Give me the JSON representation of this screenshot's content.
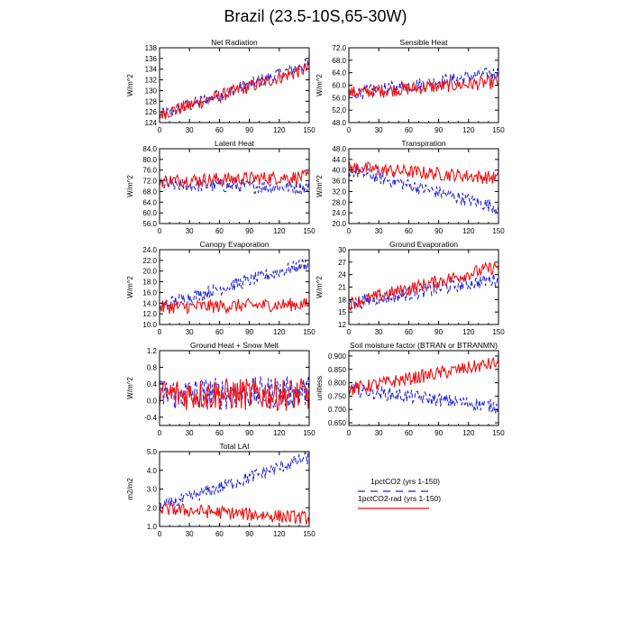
{
  "figure": {
    "title": "Brazil (23.5-10S,65-30W)",
    "colors": {
      "series1": "#2222dd",
      "series2": "#ee1111",
      "axis": "#000000"
    }
  },
  "legend": {
    "entries": [
      {
        "label": "1pctCO2 (yrs 1-150)",
        "color": "#2222dd",
        "style": "dashed"
      },
      {
        "label": "1pctCO2-rad (yrs 1-150)",
        "color": "#ee1111",
        "style": "solid"
      }
    ]
  },
  "chart_data": [
    {
      "type": "line",
      "title": "Net Radiation",
      "ylabel": "W/m^2",
      "xlim": [
        0,
        150
      ],
      "ylim": [
        124,
        138
      ],
      "xticks": [
        0,
        30,
        60,
        90,
        120,
        150
      ],
      "yticks": [
        124,
        126,
        128,
        130,
        132,
        134,
        136,
        138
      ],
      "ytick_labels": [
        "124",
        "126",
        "128",
        "130",
        "132",
        "134",
        "136",
        "138"
      ],
      "series": [
        {
          "values_start": 125.3,
          "values_end": 135.0
        },
        {
          "values_start": 125.5,
          "values_end": 134.2
        }
      ]
    },
    {
      "type": "line",
      "title": "Sensible Heat",
      "ylabel": "W/m^2",
      "xlim": [
        0,
        150
      ],
      "ylim": [
        48,
        72
      ],
      "xticks": [
        0,
        30,
        60,
        90,
        120,
        150
      ],
      "yticks": [
        48,
        52,
        56,
        60,
        64,
        68,
        72
      ],
      "ytick_labels": [
        "48.0",
        "52.0",
        "56.0",
        "60.0",
        "64.0",
        "68.0",
        "72.0"
      ],
      "series": [
        {
          "values_start": 57.0,
          "values_end": 64.0
        },
        {
          "values_start": 57.5,
          "values_end": 61.0
        }
      ]
    },
    {
      "type": "line",
      "title": "Latent Heat",
      "ylabel": "W/m^2",
      "xlim": [
        0,
        150
      ],
      "ylim": [
        56,
        84
      ],
      "xticks": [
        0,
        30,
        60,
        90,
        120,
        150
      ],
      "yticks": [
        56,
        60,
        64,
        68,
        72,
        76,
        80,
        84
      ],
      "ytick_labels": [
        "56.0",
        "60.0",
        "64.0",
        "68.0",
        "72.0",
        "76.0",
        "80.0",
        "84.0"
      ],
      "series": [
        {
          "values_start": 70.5,
          "values_end": 69.5
        },
        {
          "values_start": 72.0,
          "values_end": 73.5
        }
      ]
    },
    {
      "type": "line",
      "title": "Transpiration",
      "ylabel": "W/m^2",
      "xlim": [
        0,
        150
      ],
      "ylim": [
        20,
        48
      ],
      "xticks": [
        0,
        30,
        60,
        90,
        120,
        150
      ],
      "yticks": [
        20,
        24,
        28,
        32,
        36,
        40,
        44,
        48
      ],
      "ytick_labels": [
        "20.0",
        "24.0",
        "28.0",
        "32.0",
        "36.0",
        "40.0",
        "44.0",
        "48.0"
      ],
      "series": [
        {
          "values_start": 40.0,
          "values_end": 26.0
        },
        {
          "values_start": 41.0,
          "values_end": 37.0
        }
      ]
    },
    {
      "type": "line",
      "title": "Canopy Evaporation",
      "ylabel": "W/m^2",
      "xlim": [
        0,
        150
      ],
      "ylim": [
        10,
        24
      ],
      "xticks": [
        0,
        30,
        60,
        90,
        120,
        150
      ],
      "yticks": [
        10,
        12,
        14,
        16,
        18,
        20,
        22,
        24
      ],
      "ytick_labels": [
        "10.0",
        "12.0",
        "14.0",
        "16.0",
        "18.0",
        "20.0",
        "22.0",
        "24.0"
      ],
      "series": [
        {
          "values_start": 13.5,
          "values_end": 21.5
        },
        {
          "values_start": 13.2,
          "values_end": 13.8
        }
      ]
    },
    {
      "type": "line",
      "title": "Ground Evaporation",
      "ylabel": "W/m^2",
      "xlim": [
        0,
        150
      ],
      "ylim": [
        12,
        30
      ],
      "xticks": [
        0,
        30,
        60,
        90,
        120,
        150
      ],
      "yticks": [
        12,
        15,
        18,
        21,
        24,
        27,
        30
      ],
      "ytick_labels": [
        "12",
        "15",
        "18",
        "21",
        "24",
        "27",
        "30"
      ],
      "series": [
        {
          "values_start": 17.0,
          "values_end": 23.0
        },
        {
          "values_start": 17.0,
          "values_end": 26.0
        }
      ]
    },
    {
      "type": "line",
      "title": "Ground Heat + Snow Melt",
      "ylabel": "W/m^2",
      "xlim": [
        0,
        150
      ],
      "ylim": [
        -0.6,
        1.2
      ],
      "xticks": [
        0,
        30,
        60,
        90,
        120,
        150
      ],
      "yticks": [
        -0.4,
        0,
        0.4,
        0.8,
        1.2
      ],
      "ytick_labels": [
        "-0.4",
        "0.0",
        "0.4",
        "0.8",
        "1.2"
      ],
      "series": [
        {
          "values_start": 0.15,
          "values_end": 0.2
        },
        {
          "values_start": 0.15,
          "values_end": 0.15
        }
      ]
    },
    {
      "type": "line",
      "title": "Soil moisture factor (BTRAN or BTRANMN)",
      "ylabel": "unitless",
      "xlim": [
        0,
        150
      ],
      "ylim": [
        0.64,
        0.92
      ],
      "xticks": [
        0,
        30,
        60,
        90,
        120,
        150
      ],
      "yticks": [
        0.65,
        0.7,
        0.75,
        0.8,
        0.85,
        0.9
      ],
      "ytick_labels": [
        "0.650",
        "0.700",
        "0.750",
        "0.800",
        "0.850",
        "0.900"
      ],
      "series": [
        {
          "values_start": 0.775,
          "values_end": 0.71
        },
        {
          "values_start": 0.775,
          "values_end": 0.875
        }
      ]
    },
    {
      "type": "line",
      "title": "Total LAI",
      "ylabel": "m2/m2",
      "xlim": [
        0,
        150
      ],
      "ylim": [
        1.0,
        5.0
      ],
      "xticks": [
        0,
        30,
        60,
        90,
        120,
        150
      ],
      "yticks": [
        1,
        2,
        3,
        4,
        5
      ],
      "ytick_labels": [
        "1.0",
        "2.0",
        "3.0",
        "4.0",
        "5.0"
      ],
      "series": [
        {
          "values_start": 2.0,
          "values_end": 4.7
        },
        {
          "values_start": 1.95,
          "values_end": 1.45
        }
      ]
    }
  ]
}
